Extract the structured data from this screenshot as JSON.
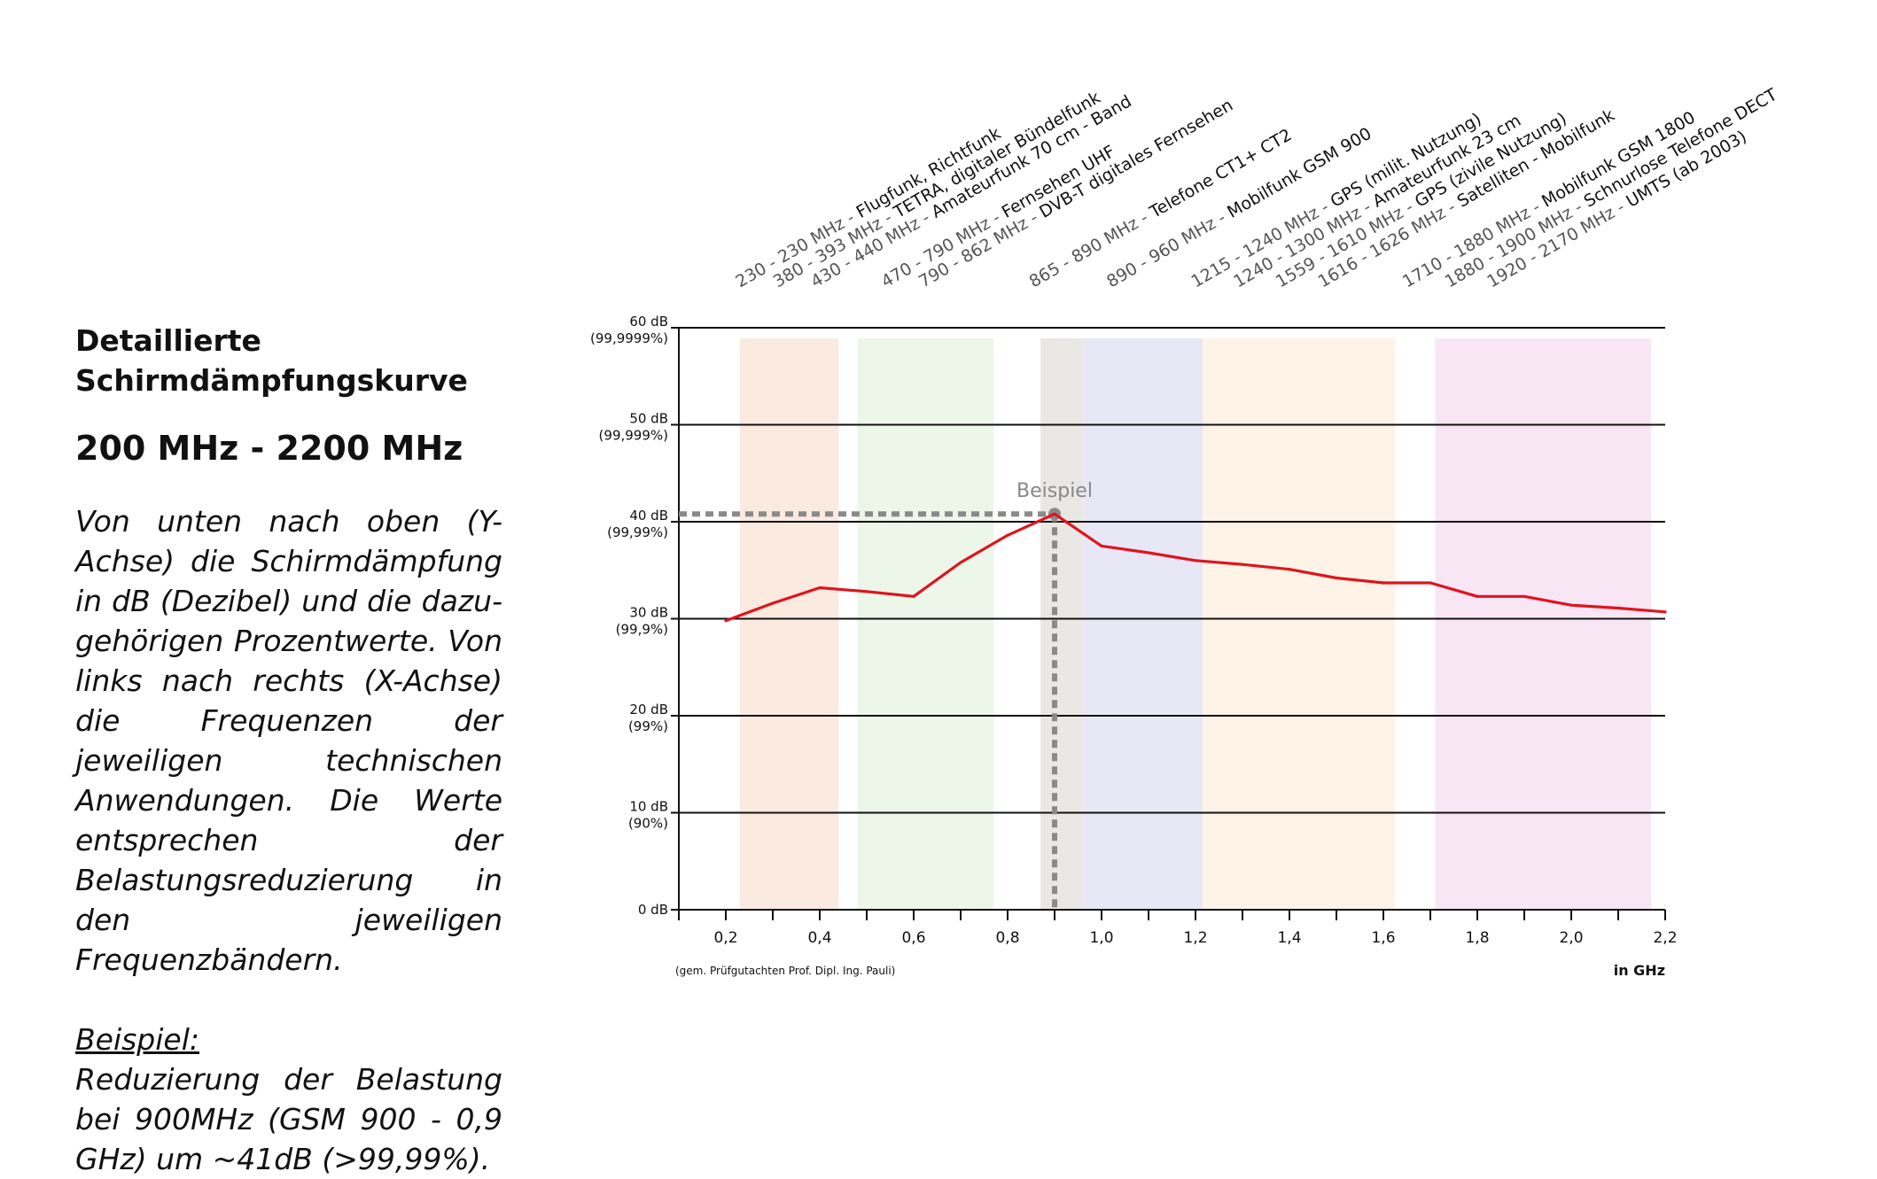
{
  "text": {
    "title_line1": "Detaillierte",
    "title_line2": "Schirmdämpfungskurve",
    "range": "200 MHz - 2200 MHz",
    "description": "Von unten nach oben (Y-Achse) die Schirmdämpfung in dB (Dezibel) und die dazu-gehörigen Prozentwerte. Von links nach rechts (X-Achse) die Frequenzen der jeweiligen technischen Anwendungen. Die Werte entsprechen der Belastungsreduzierung in den jeweiligen Frequenzbändern.",
    "example_heading": "Beispiel:",
    "example_text": "Reduzierung der Belastung bei 900MHz (GSM 900 - 0,9 GHz) um ~41dB (>99,99%)."
  },
  "chart_data": {
    "type": "line",
    "xlim": [
      0.1,
      2.2
    ],
    "ylim": [
      0,
      60
    ],
    "grid": true,
    "x_tick_labels": [
      {
        "x": 0.2,
        "label": "0,2"
      },
      {
        "x": 0.4,
        "label": "0,4"
      },
      {
        "x": 0.6,
        "label": "0,6"
      },
      {
        "x": 0.8,
        "label": "0,8"
      },
      {
        "x": 1.0,
        "label": "1,0"
      },
      {
        "x": 1.2,
        "label": "1,2"
      },
      {
        "x": 1.4,
        "label": "1,4"
      },
      {
        "x": 1.6,
        "label": "1,6"
      },
      {
        "x": 1.8,
        "label": "1,8"
      },
      {
        "x": 2.0,
        "label": "2,0"
      },
      {
        "x": 2.2,
        "label": "2,2"
      }
    ],
    "x_minor_ticks": [
      0.1,
      0.2,
      0.3,
      0.4,
      0.5,
      0.6,
      0.7,
      0.8,
      0.9,
      1.0,
      1.1,
      1.2,
      1.3,
      1.4,
      1.5,
      1.6,
      1.7,
      1.8,
      1.9,
      2.0,
      2.1,
      2.2
    ],
    "y_ticks": [
      {
        "y": 60,
        "label": "60 dB",
        "sub": "(99,9999%)"
      },
      {
        "y": 50,
        "label": "50 dB",
        "sub": "(99,999%)"
      },
      {
        "y": 40,
        "label": "40 dB",
        "sub": "(99,99%)"
      },
      {
        "y": 30,
        "label": "30 dB",
        "sub": "(99,9%)"
      },
      {
        "y": 20,
        "label": "20 dB",
        "sub": "(99%)"
      },
      {
        "y": 10,
        "label": "10 dB",
        "sub": "(90%)"
      },
      {
        "y": 0,
        "label": "0 dB",
        "sub": ""
      }
    ],
    "x_unit": "in GHz",
    "source_note": "(gem. Prüfgutachten Prof. Dipl. Ing. Pauli)",
    "series": [
      {
        "color": "#e0141e",
        "x": [
          0.2,
          0.3,
          0.4,
          0.5,
          0.6,
          0.7,
          0.8,
          0.9,
          1.0,
          1.1,
          1.2,
          1.3,
          1.4,
          1.5,
          1.6,
          1.7,
          1.8,
          1.9,
          2.0,
          2.1,
          2.2
        ],
        "y": [
          29.8,
          31.6,
          33.2,
          32.8,
          32.3,
          35.8,
          38.6,
          40.8,
          37.5,
          36.8,
          36.0,
          35.6,
          35.1,
          34.2,
          33.7,
          33.7,
          32.3,
          32.3,
          31.4,
          31.1,
          30.7
        ]
      }
    ],
    "background_bands": [
      {
        "from": 0.23,
        "to": 0.44,
        "color": "#f8d8c6"
      },
      {
        "from": 0.48,
        "to": 0.77,
        "color": "#ddeed7"
      },
      {
        "from": 0.87,
        "to": 0.96,
        "color": "#d9d6cf"
      },
      {
        "from": 0.96,
        "to": 1.215,
        "color": "#d6d4ee"
      },
      {
        "from": 1.215,
        "to": 1.625,
        "color": "#fbe9d2"
      },
      {
        "from": 1.71,
        "to": 2.17,
        "color": "#f4d2ec"
      }
    ],
    "annotation": {
      "label": "Beispiel",
      "x": 0.9,
      "y": 40.8
    },
    "band_labels": [
      {
        "freq": "230 - 230 MHz - ",
        "app": "Flugfunk, Richtfunk",
        "x": 0.23
      },
      {
        "freq": "380 - 393 MHz - ",
        "app": "TETRA, digitaler Bündelfunk",
        "x": 0.31
      },
      {
        "freq": "430 - 440 MHz - ",
        "app": "Amateurfunk 70 cm - Band",
        "x": 0.39
      },
      {
        "freq": "470 - 790 MHz - ",
        "app": "Fernsehen UHF",
        "x": 0.54
      },
      {
        "freq": "790 - 862 MHz - ",
        "app": "DVB-T digitales Fernsehen",
        "x": 0.62
      },
      {
        "freq": "865 - 890 MHz - ",
        "app": "Telefone CT1+ CT2",
        "x": 0.855
      },
      {
        "freq": "890 - 960 MHz - ",
        "app": "Mobilfunk GSM 900",
        "x": 1.02
      },
      {
        "freq": "1215 - 1240 MHz - ",
        "app": "GPS (milit. Nutzung)",
        "x": 1.2
      },
      {
        "freq": "1240 - 1300 MHz - ",
        "app": "Amateurfunk 23 cm",
        "x": 1.29
      },
      {
        "freq": "1559 - 1610 MHz - ",
        "app": "GPS (zivile Nutzung)",
        "x": 1.38
      },
      {
        "freq": "1616 - 1626 MHz - ",
        "app": "Satelliten - Mobilfunk",
        "x": 1.47
      },
      {
        "freq": "1710 - 1880 MHz - ",
        "app": "Mobilfunk GSM 1800",
        "x": 1.65
      },
      {
        "freq": "1880 - 1900 MHz - ",
        "app": "Schnurlose Telefone DECT",
        "x": 1.74
      },
      {
        "freq": "1920 - 2170 MHz - ",
        "app": "UMTS (ab 2003)",
        "x": 1.83
      }
    ]
  }
}
